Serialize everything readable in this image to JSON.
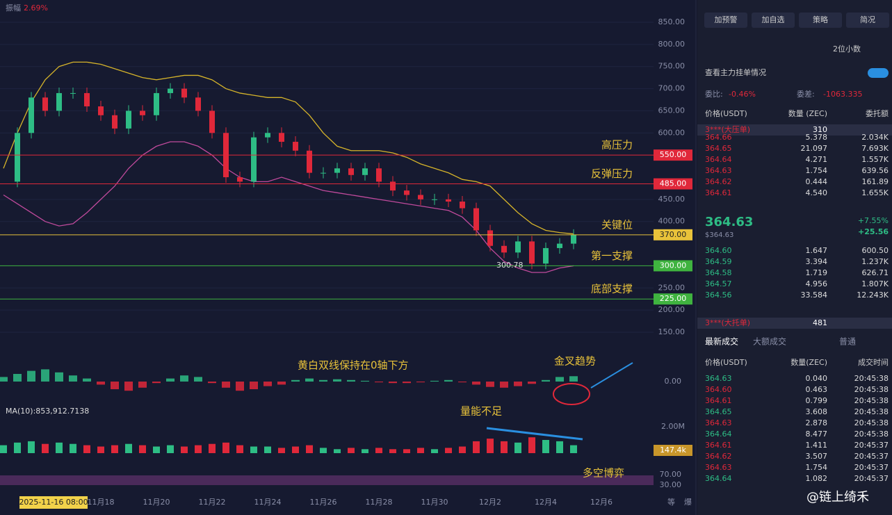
{
  "chart": {
    "amplitude_label": "振幅",
    "amplitude": "2.69%",
    "ma_label": "MA(10):853,912.7138",
    "ylim": [
      150,
      850
    ],
    "yticks": [
      {
        "value": 850,
        "label": "850.00"
      },
      {
        "value": 800,
        "label": "800.00"
      },
      {
        "value": 750,
        "label": "750.00"
      },
      {
        "value": 700,
        "label": "700.00"
      },
      {
        "value": 650,
        "label": "650.00"
      },
      {
        "value": 600,
        "label": "600.00"
      },
      {
        "value": 450,
        "label": "450.00"
      },
      {
        "value": 400,
        "label": "400.00"
      },
      {
        "value": 250,
        "label": "250.00"
      },
      {
        "value": 200,
        "label": "200.00"
      },
      {
        "value": 150,
        "label": "150.00"
      }
    ],
    "levels": [
      {
        "name": "高压力",
        "value": 550,
        "label": "550.00",
        "color": "#e0283a"
      },
      {
        "name": "反弹压力",
        "value": 485,
        "label": "485.00",
        "color": "#e0283a"
      },
      {
        "name": "关键位",
        "value": 370,
        "label": "370.00",
        "color": "#e8c23a"
      },
      {
        "name": "第一支撑",
        "value": 300,
        "label": "300.00",
        "color": "#3fb33f"
      },
      {
        "name": "底部支撑",
        "value": 225,
        "label": "225.00",
        "color": "#3fb33f"
      }
    ],
    "low_label": {
      "value": 300.78,
      "label": "300.78"
    },
    "closes": [
      490,
      600,
      680,
      650,
      690,
      690,
      660,
      640,
      610,
      650,
      640,
      690,
      700,
      680,
      650,
      600,
      500,
      490,
      590,
      600,
      580,
      560,
      510,
      510,
      520,
      505,
      520,
      490,
      470,
      460,
      450,
      450,
      445,
      430,
      380,
      345,
      330,
      355,
      305,
      340,
      350,
      370
    ],
    "upper_band": [
      520,
      600,
      670,
      720,
      750,
      760,
      760,
      755,
      745,
      735,
      725,
      720,
      725,
      730,
      730,
      720,
      700,
      690,
      685,
      680,
      680,
      670,
      640,
      600,
      570,
      560,
      560,
      560,
      555,
      545,
      530,
      520,
      510,
      495,
      490,
      480,
      450,
      420,
      395,
      380,
      375,
      372
    ],
    "lower_band": [
      460,
      440,
      420,
      400,
      390,
      395,
      420,
      450,
      480,
      520,
      550,
      570,
      580,
      580,
      570,
      550,
      520,
      500,
      490,
      490,
      500,
      490,
      480,
      470,
      465,
      460,
      455,
      450,
      445,
      440,
      435,
      430,
      425,
      410,
      380,
      340,
      310,
      295,
      285,
      285,
      295,
      300
    ],
    "macd_label": "0.00",
    "macd_lim": [
      -1,
      1
    ],
    "macd": [
      0.3,
      0.5,
      0.7,
      0.8,
      0.6,
      0.4,
      0.2,
      -0.2,
      -0.5,
      -0.6,
      -0.4,
      -0.1,
      0.2,
      0.4,
      0.3,
      -0.1,
      -0.4,
      -0.6,
      -0.5,
      -0.3,
      -0.2,
      0.1,
      0.2,
      0.1,
      0.15,
      0.1,
      0.05,
      -0.05,
      -0.1,
      -0.1,
      -0.05,
      0.05,
      0.1,
      -0.05,
      -0.2,
      -0.35,
      -0.4,
      -0.3,
      -0.15,
      0.1,
      0.3,
      0.35
    ],
    "macd_note": "黄白双线保持在0轴下方",
    "cross_note": "金叉趋势",
    "vol_note": "量能不足",
    "rsi_note": "多空博弈",
    "vol_tick": "2.00M",
    "vol_current": "147.4k",
    "vol_lim": [
      0,
      2
    ],
    "volume": [
      0.6,
      0.8,
      0.9,
      0.7,
      0.8,
      0.7,
      0.6,
      0.5,
      0.6,
      0.7,
      0.6,
      0.5,
      0.6,
      0.5,
      0.6,
      0.7,
      0.8,
      0.6,
      0.5,
      0.5,
      0.4,
      0.5,
      0.6,
      0.4,
      0.3,
      0.4,
      0.3,
      0.4,
      0.3,
      0.3,
      0.4,
      0.3,
      0.4,
      0.5,
      0.9,
      1.1,
      0.9,
      0.8,
      1.2,
      1.0,
      0.9,
      0.6
    ],
    "rsi_ticks": [
      "70.00",
      "30.00"
    ],
    "date_box": "2025-11-16 08:00",
    "x_labels": [
      "11月18",
      "11月20",
      "11月22",
      "11月24",
      "11月26",
      "11月28",
      "11月30",
      "12月2",
      "12月4",
      "12月6"
    ],
    "footer": [
      "等",
      "爆"
    ],
    "watermark": "@链上绮禾"
  },
  "panel": {
    "buttons": [
      "加预警",
      "加自选",
      "策略",
      "简况"
    ],
    "decimals": "2位小数",
    "main_orders": "查看主力挂单情况",
    "ratio_label": "委比:",
    "ratio": "-0.46%",
    "diff_label": "委差:",
    "diff": "-1063.335",
    "book_headers": [
      "价格(USDT)",
      "数量 (ZEC)",
      "委托额"
    ],
    "big_ask": {
      "label": "3***(大压单)",
      "value": "310"
    },
    "asks": [
      [
        "364.66",
        "5.378",
        "2.034K"
      ],
      [
        "364.65",
        "21.097",
        "7.693K"
      ],
      [
        "364.64",
        "4.271",
        "1.557K"
      ],
      [
        "364.63",
        "1.754",
        "639.56"
      ],
      [
        "364.62",
        "0.444",
        "161.89"
      ],
      [
        "364.61",
        "4.540",
        "1.655K"
      ]
    ],
    "last": "364.63",
    "last_usd": "$364.63",
    "change_pct": "+7.55%",
    "change": "+25.56",
    "bids": [
      [
        "364.60",
        "1.647",
        "600.50"
      ],
      [
        "364.59",
        "3.394",
        "1.237K"
      ],
      [
        "364.58",
        "1.719",
        "626.71"
      ],
      [
        "364.57",
        "4.956",
        "1.807K"
      ],
      [
        "364.56",
        "33.584",
        "12.243K"
      ]
    ],
    "big_bid": {
      "label": "3***(大托单)",
      "value": "481"
    },
    "tabs": [
      "最新成交",
      "大额成交",
      "普通"
    ],
    "trade_headers": [
      "价格(USDT)",
      "数量(ZEC)",
      "成交时间"
    ],
    "trades": [
      [
        "364.63",
        "0.040",
        "20:45:38",
        "#2ebd85"
      ],
      [
        "364.60",
        "0.463",
        "20:45:38",
        "#e0283a"
      ],
      [
        "364.61",
        "0.799",
        "20:45:38",
        "#e0283a"
      ],
      [
        "364.65",
        "3.608",
        "20:45:38",
        "#2ebd85"
      ],
      [
        "364.63",
        "2.878",
        "20:45:38",
        "#e0283a"
      ],
      [
        "364.64",
        "8.477",
        "20:45:38",
        "#2ebd85"
      ],
      [
        "364.61",
        "1.411",
        "20:45:37",
        "#e0283a"
      ],
      [
        "364.62",
        "3.507",
        "20:45:37",
        "#e0283a"
      ],
      [
        "364.63",
        "1.754",
        "20:45:37",
        "#e0283a"
      ],
      [
        "364.64",
        "1.082",
        "20:45:37",
        "#2ebd85"
      ]
    ]
  }
}
